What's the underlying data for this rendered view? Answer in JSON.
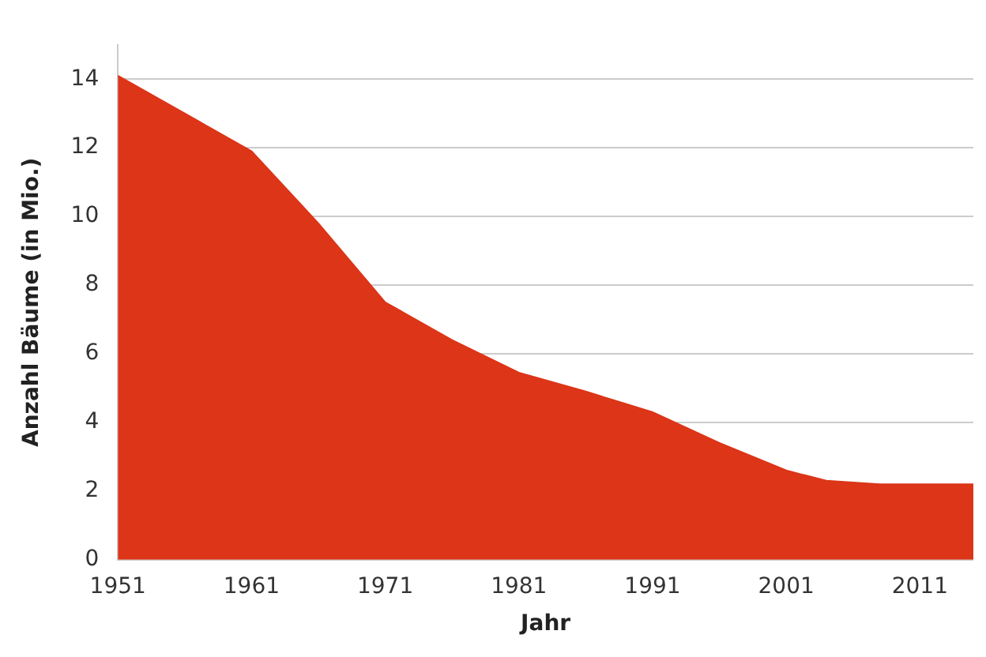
{
  "chart_data": {
    "type": "area",
    "xlabel": "Jahr",
    "ylabel": "Anzahl Bäume (in Mio.)",
    "x": [
      1951,
      1956,
      1961,
      1966,
      1971,
      1976,
      1981,
      1986,
      1991,
      1996,
      2001,
      2004,
      2008,
      2011,
      2015
    ],
    "series": [
      {
        "color": "#dc3518",
        "values": [
          14.1,
          13,
          11.9,
          9.8,
          7.5,
          6.4,
          5.45,
          4.9,
          4.3,
          3.4,
          2.6,
          2.3,
          2.2,
          2.2,
          2.2
        ]
      }
    ],
    "xlim": [
      1951,
      2015
    ],
    "xticks": [
      1951,
      1961,
      1971,
      1981,
      1991,
      2001,
      2011
    ],
    "ylim": [
      0,
      15
    ],
    "yticks": [
      0,
      2,
      4,
      6,
      8,
      10,
      12,
      14
    ],
    "grid": "y"
  }
}
